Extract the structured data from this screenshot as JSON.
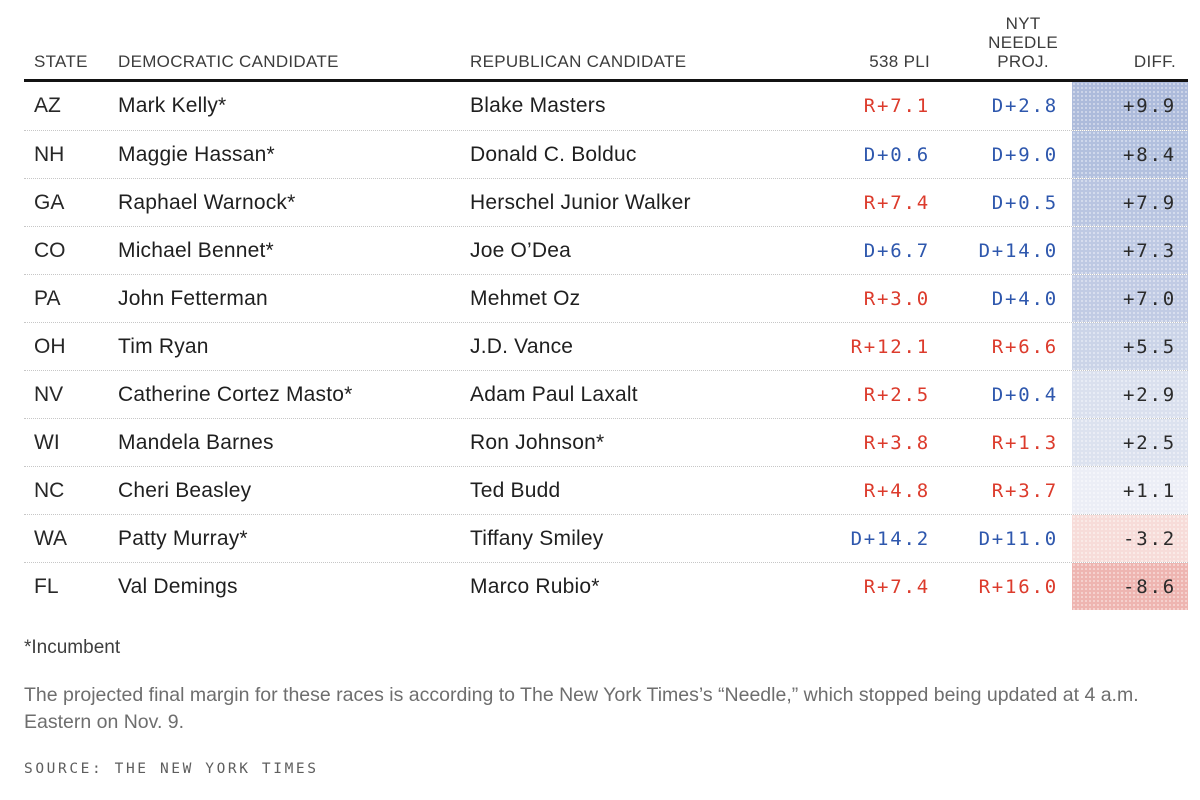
{
  "colors": {
    "rep_red": "#dc3b2c",
    "dem_blue": "#2e57ad",
    "diff_text": "#2b2b2b",
    "rule_black": "#131313",
    "row_separator": "#c7c7c7"
  },
  "header": {
    "state": "STATE",
    "dem": "DEMOCRATIC CANDIDATE",
    "rep": "REPUBLICAN CANDIDATE",
    "pli": "538 PLI",
    "nyt_lines": [
      "NYT",
      "NEEDLE",
      "PROJ."
    ],
    "diff": "DIFF."
  },
  "chart_data": {
    "type": "table",
    "columns": [
      "STATE",
      "DEMOCRATIC CANDIDATE",
      "REPUBLICAN CANDIDATE",
      "538 PLI",
      "NYT NEEDLE PROJ.",
      "DIFF."
    ],
    "rows": [
      {
        "state": "AZ",
        "dem": "Mark Kelly*",
        "rep": "Blake Masters",
        "pli": "R+7.1",
        "nyt": "D+2.8",
        "diff": "+9.9",
        "diff_bg": "#adbbdb"
      },
      {
        "state": "NH",
        "dem": "Maggie Hassan*",
        "rep": "Donald C. Bolduc",
        "pli": "D+0.6",
        "nyt": "D+9.0",
        "diff": "+8.4",
        "diff_bg": "#b2c0de"
      },
      {
        "state": "GA",
        "dem": "Raphael Warnock*",
        "rep": "Herschel Junior Walker",
        "pli": "R+7.4",
        "nyt": "D+0.5",
        "diff": "+7.9",
        "diff_bg": "#b9c5e1"
      },
      {
        "state": "CO",
        "dem": "Michael Bennet*",
        "rep": "Joe O’Dea",
        "pli": "D+6.7",
        "nyt": "D+14.0",
        "diff": "+7.3",
        "diff_bg": "#bec9e3"
      },
      {
        "state": "PA",
        "dem": "John Fetterman",
        "rep": "Mehmet Oz",
        "pli": "R+3.0",
        "nyt": "D+4.0",
        "diff": "+7.0",
        "diff_bg": "#c1cbe4"
      },
      {
        "state": "OH",
        "dem": "Tim Ryan",
        "rep": "J.D. Vance",
        "pli": "R+12.1",
        "nyt": "R+6.6",
        "diff": "+5.5",
        "diff_bg": "#cbd4e8"
      },
      {
        "state": "NV",
        "dem": "Catherine Cortez Masto*",
        "rep": "Adam Paul Laxalt",
        "pli": "R+2.5",
        "nyt": "D+0.4",
        "diff": "+2.9",
        "diff_bg": "#dae0ee"
      },
      {
        "state": "WI",
        "dem": "Mandela Barnes",
        "rep": "Ron Johnson*",
        "pli": "R+3.8",
        "nyt": "R+1.3",
        "diff": "+2.5",
        "diff_bg": "#dce2ef"
      },
      {
        "state": "NC",
        "dem": "Cheri Beasley",
        "rep": "Ted Budd",
        "pli": "R+4.8",
        "nyt": "R+3.7",
        "diff": "+1.1",
        "diff_bg": "#eceef6"
      },
      {
        "state": "WA",
        "dem": "Patty Murray*",
        "rep": "Tiffany Smiley",
        "pli": "D+14.2",
        "nyt": "D+11.0",
        "diff": "-3.2",
        "diff_bg": "#f7dcd9"
      },
      {
        "state": "FL",
        "dem": "Val Demings",
        "rep": "Marco Rubio*",
        "pli": "R+7.4",
        "nyt": "R+16.0",
        "diff": "-8.6",
        "diff_bg": "#eeb5b1"
      }
    ]
  },
  "footer": {
    "incumbent_note": "*Incumbent",
    "methodology_note": "The projected final margin for these races is according to The New York Times’s “Needle,” which stopped being updated at 4 a.m. Eastern on Nov. 9.",
    "source": "SOURCE: THE NEW YORK TIMES"
  }
}
